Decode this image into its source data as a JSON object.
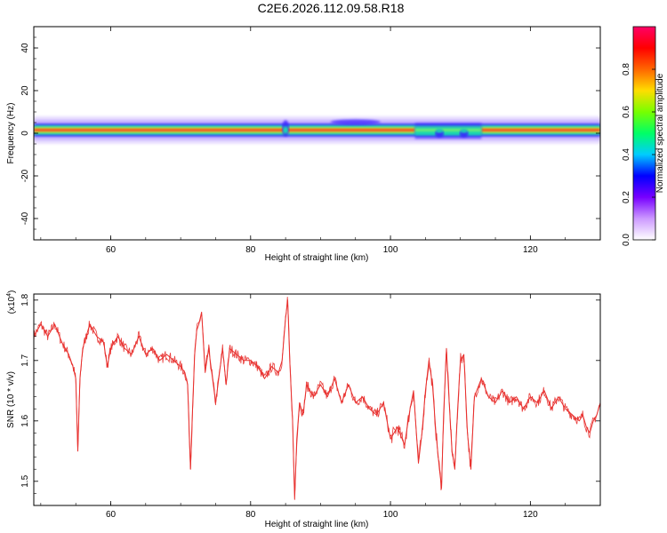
{
  "figure": {
    "title": "C2E6.2026.112.09.58.R18"
  },
  "chart_data": [
    {
      "type": "heatmap",
      "panel": "spectrogram",
      "xlabel": "Height of straight line (km)",
      "ylabel": "Frequency (Hz)",
      "xlim": [
        49,
        130
      ],
      "ylim": [
        -50,
        50
      ],
      "xticks": [
        60,
        80,
        100,
        120
      ],
      "yticks": [
        -40,
        -20,
        0,
        20,
        40
      ],
      "grid": false,
      "colorbar": {
        "label": "Normalized spectral amplitude",
        "range": [
          0.0,
          1.0
        ],
        "ticks": [
          0.0,
          0.2,
          0.4,
          0.6,
          0.8
        ],
        "colormap": "rainbow",
        "stops": [
          "#ffffff",
          "#cc99ff",
          "#7700ff",
          "#0000ff",
          "#00ccff",
          "#00ff66",
          "#77ff00",
          "#ffdd00",
          "#ff6600",
          "#ff0000",
          "#ff0066"
        ]
      },
      "band": {
        "center_hz": 1.5,
        "core_halfwidth_hz": 1.2,
        "outer_halfwidth_hz": 5.0,
        "core_color": "#ff3b1f",
        "ridge_color": "#b7ff3c",
        "mid_color": "#15d6b4",
        "low_color": "#3a22ff",
        "faint_color": "#d9c8ff"
      },
      "features": [
        {
          "x_km": 85.0,
          "note_shape": "bulge"
        },
        {
          "x_km": 95.0,
          "note_shape": "upper_halo"
        },
        {
          "x_km": 103.5,
          "note_shape": "broadening"
        },
        {
          "x_km": 107.0,
          "note_shape": "dip"
        },
        {
          "x_km": 110.5,
          "note_shape": "dip"
        }
      ]
    },
    {
      "type": "line",
      "panel": "snr",
      "xlabel": "Height of straight line (km)",
      "ylabel": "SNR (10 * v/v)",
      "y_multiplier_label": "(x10",
      "y_multiplier_exp": "4",
      "y_multiplier_close": ")",
      "xlim": [
        49,
        130
      ],
      "ylim": [
        1.46,
        1.81
      ],
      "xticks": [
        60,
        80,
        100,
        120
      ],
      "yticks": [
        1.5,
        1.6,
        1.7,
        1.8
      ],
      "grid": false,
      "series": [
        {
          "color": "#e8302e",
          "x": [
            49,
            50,
            51,
            52,
            53,
            54,
            54.6,
            55,
            55.3,
            55.6,
            56,
            57,
            58,
            59,
            59.5,
            60,
            61,
            62,
            63,
            64,
            65,
            66,
            67,
            68,
            69,
            70,
            70.6,
            71,
            71.4,
            71.7,
            72,
            72.3,
            72.6,
            73,
            73.5,
            74,
            75,
            76,
            76.5,
            77,
            78,
            79,
            80,
            81,
            82,
            83,
            84,
            84.5,
            85,
            85.3,
            85.6,
            86,
            86.3,
            86.6,
            87,
            87.5,
            88,
            89,
            90,
            91,
            92,
            93,
            94,
            95,
            96,
            97,
            98,
            99,
            100,
            101,
            102,
            102.8,
            103.3,
            103.7,
            104,
            104.5,
            105,
            105.5,
            106,
            106.5,
            107,
            107.3,
            107.6,
            108,
            108.4,
            108.8,
            109.2,
            109.6,
            110,
            110.5,
            111,
            111.5,
            112,
            113,
            114,
            115,
            116,
            117,
            118,
            119,
            120,
            121,
            122,
            123,
            124,
            125,
            126,
            127,
            127.5,
            128,
            128.5,
            129,
            129.5,
            130
          ],
          "y": [
            1.74,
            1.76,
            1.74,
            1.76,
            1.73,
            1.71,
            1.69,
            1.67,
            1.55,
            1.67,
            1.72,
            1.76,
            1.74,
            1.73,
            1.69,
            1.72,
            1.74,
            1.72,
            1.71,
            1.74,
            1.71,
            1.72,
            1.7,
            1.71,
            1.7,
            1.69,
            1.68,
            1.66,
            1.52,
            1.62,
            1.71,
            1.75,
            1.76,
            1.78,
            1.68,
            1.72,
            1.63,
            1.72,
            1.66,
            1.72,
            1.71,
            1.7,
            1.7,
            1.69,
            1.67,
            1.69,
            1.68,
            1.7,
            1.77,
            1.8,
            1.7,
            1.6,
            1.47,
            1.57,
            1.63,
            1.61,
            1.66,
            1.64,
            1.66,
            1.64,
            1.67,
            1.63,
            1.66,
            1.63,
            1.64,
            1.62,
            1.61,
            1.63,
            1.57,
            1.59,
            1.56,
            1.62,
            1.65,
            1.58,
            1.53,
            1.58,
            1.65,
            1.7,
            1.66,
            1.58,
            1.52,
            1.49,
            1.61,
            1.72,
            1.63,
            1.55,
            1.52,
            1.62,
            1.7,
            1.71,
            1.58,
            1.52,
            1.64,
            1.67,
            1.64,
            1.63,
            1.65,
            1.63,
            1.64,
            1.62,
            1.64,
            1.63,
            1.65,
            1.62,
            1.64,
            1.62,
            1.61,
            1.6,
            1.61,
            1.59,
            1.58,
            1.6,
            1.61,
            1.63
          ]
        }
      ]
    }
  ]
}
